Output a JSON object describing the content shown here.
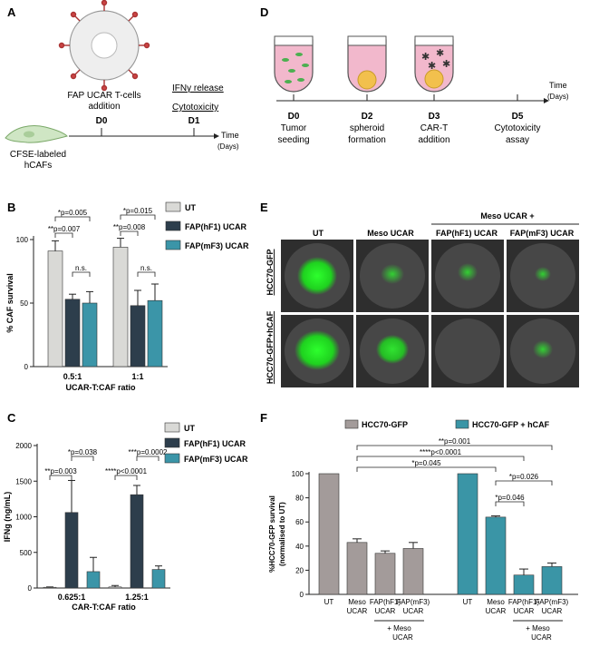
{
  "panels": {
    "A": {
      "letter": "A",
      "tcell_label_1": "FAP UCAR T-cells",
      "tcell_label_2": "addition",
      "release_label": "IFNγ release",
      "cytotox_label": "Cytotoxicity",
      "d0": "D0",
      "d1": "D1",
      "time_label": "Time",
      "days_label": "(Days)",
      "caf_label_1": "CFSE-labeled",
      "caf_label_2": "hCAFs"
    },
    "D": {
      "letter": "D",
      "time_label": "Time",
      "days_label": "(Days)",
      "steps": [
        {
          "day": "D0",
          "line1": "Tumor",
          "line2": "seeding"
        },
        {
          "day": "D2",
          "line1": "spheroid",
          "line2": "formation"
        },
        {
          "day": "D3",
          "line1": "CAR-T",
          "line2": "addition"
        },
        {
          "day": "D5",
          "line1": "Cytotoxicity",
          "line2": "assay"
        }
      ]
    },
    "B": {
      "letter": "B"
    },
    "C": {
      "letter": "C"
    },
    "E": {
      "letter": "E",
      "group_header": "Meso UCAR  +",
      "columns": [
        "UT",
        "Meso UCAR",
        "FAP(hF1) UCAR",
        "FAP(mF3) UCAR"
      ],
      "rows": [
        "HCC70-GFP",
        "HCC70-GFP+hCAF"
      ]
    },
    "F": {
      "letter": "F"
    }
  },
  "colors": {
    "ut": "#d9d9d6",
    "hf1": "#2d3e4c",
    "mf3": "#3b95a8",
    "gfp_grey": "#a39b9a",
    "gfp_teal": "#3a95a6"
  },
  "chart_data": [
    {
      "id": "B",
      "type": "bar",
      "ylabel": "% CAF survival",
      "xlabel": "UCAR-T:CAF ratio",
      "ylim": [
        0,
        100
      ],
      "yticks": [
        "0",
        "50",
        "100"
      ],
      "categories": [
        "0.5:1",
        "1:1"
      ],
      "series": [
        {
          "name": "UT",
          "values": [
            91,
            94
          ],
          "errors": [
            8,
            7
          ]
        },
        {
          "name": "FAP(hF1) UCAR",
          "values": [
            53,
            48
          ],
          "errors": [
            4,
            12
          ]
        },
        {
          "name": "FAP(mF3) UCAR",
          "values": [
            50,
            52
          ],
          "errors": [
            9,
            13
          ]
        }
      ],
      "annotations": [
        "*p=0.005",
        "**p=0.007",
        "n.s.",
        "*p=0.015",
        "**p=0.008",
        "n.s."
      ]
    },
    {
      "id": "C",
      "type": "bar",
      "ylabel": "IFNg (ng/mL)",
      "xlabel": "CAR-T:CAF ratio",
      "ylim": [
        0,
        2000
      ],
      "yticks": [
        "0",
        "500",
        "1000",
        "1500",
        "2000"
      ],
      "categories": [
        "0.625:1",
        "1.25:1"
      ],
      "series": [
        {
          "name": "UT",
          "values": [
            10,
            15
          ],
          "errors": [
            5,
            20
          ]
        },
        {
          "name": "FAP(hF1) UCAR",
          "values": [
            1060,
            1310
          ],
          "errors": [
            450,
            130
          ]
        },
        {
          "name": "FAP(mF3) UCAR",
          "values": [
            230,
            260
          ],
          "errors": [
            200,
            50
          ]
        }
      ],
      "annotations": [
        "*p=0.038",
        "**p=0.003",
        "***p=0.0002",
        "****p<0.0001"
      ]
    },
    {
      "id": "F",
      "type": "bar",
      "ylabel": "%HCC70-GFP survival (normalised to UT)",
      "ylim": [
        0,
        100
      ],
      "yticks": [
        "0",
        "20",
        "40",
        "60",
        "80",
        "100"
      ],
      "legend": [
        "HCC70-GFP",
        "HCC70-GFP + hCAF"
      ],
      "groups": [
        {
          "name": "HCC70-GFP",
          "categories": [
            "UT",
            "Meso UCAR",
            "FAP(hF1) UCAR",
            "FAP(mF3) UCAR"
          ],
          "values": [
            100,
            43,
            34,
            38
          ],
          "errors": [
            0,
            3,
            2,
            5
          ]
        },
        {
          "name": "HCC70-GFP + hCAF",
          "categories": [
            "UT",
            "Meso UCAR",
            "FAP(hF1) UCAR",
            "FAP(mF3) UCAR"
          ],
          "values": [
            100,
            64,
            16,
            23
          ],
          "errors": [
            0,
            1,
            5,
            3
          ]
        }
      ],
      "bracket_label": "+ Meso UCAR",
      "annotations": [
        "**p=0.001",
        "****p<0.0001",
        "*p=0.045",
        "*p=0.026",
        "*p=0.046"
      ]
    }
  ]
}
